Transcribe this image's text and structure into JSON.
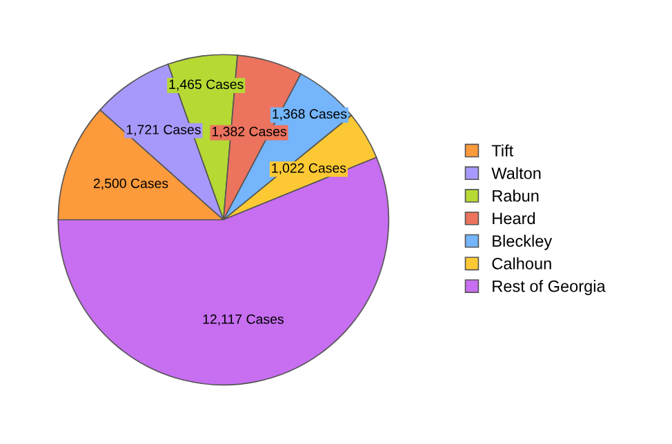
{
  "chart_data": {
    "type": "pie",
    "categories": [
      "Tift",
      "Walton",
      "Rabun",
      "Heard",
      "Bleckley",
      "Calhoun",
      "Rest of Georgia"
    ],
    "values": [
      2500,
      1721,
      1465,
      1382,
      1368,
      1022,
      12117
    ],
    "value_labels": [
      "2,500 Cases",
      "1,721 Cases",
      "1,465 Cases",
      "1,382 Cases",
      "1,368 Cases",
      "1,022 Cases",
      "12,117 Cases"
    ],
    "colors": [
      "#fd9a3c",
      "#a799fb",
      "#b6d934",
      "#ec735e",
      "#74b5fb",
      "#fcc934",
      "#c76ef1"
    ],
    "legend": "right"
  }
}
